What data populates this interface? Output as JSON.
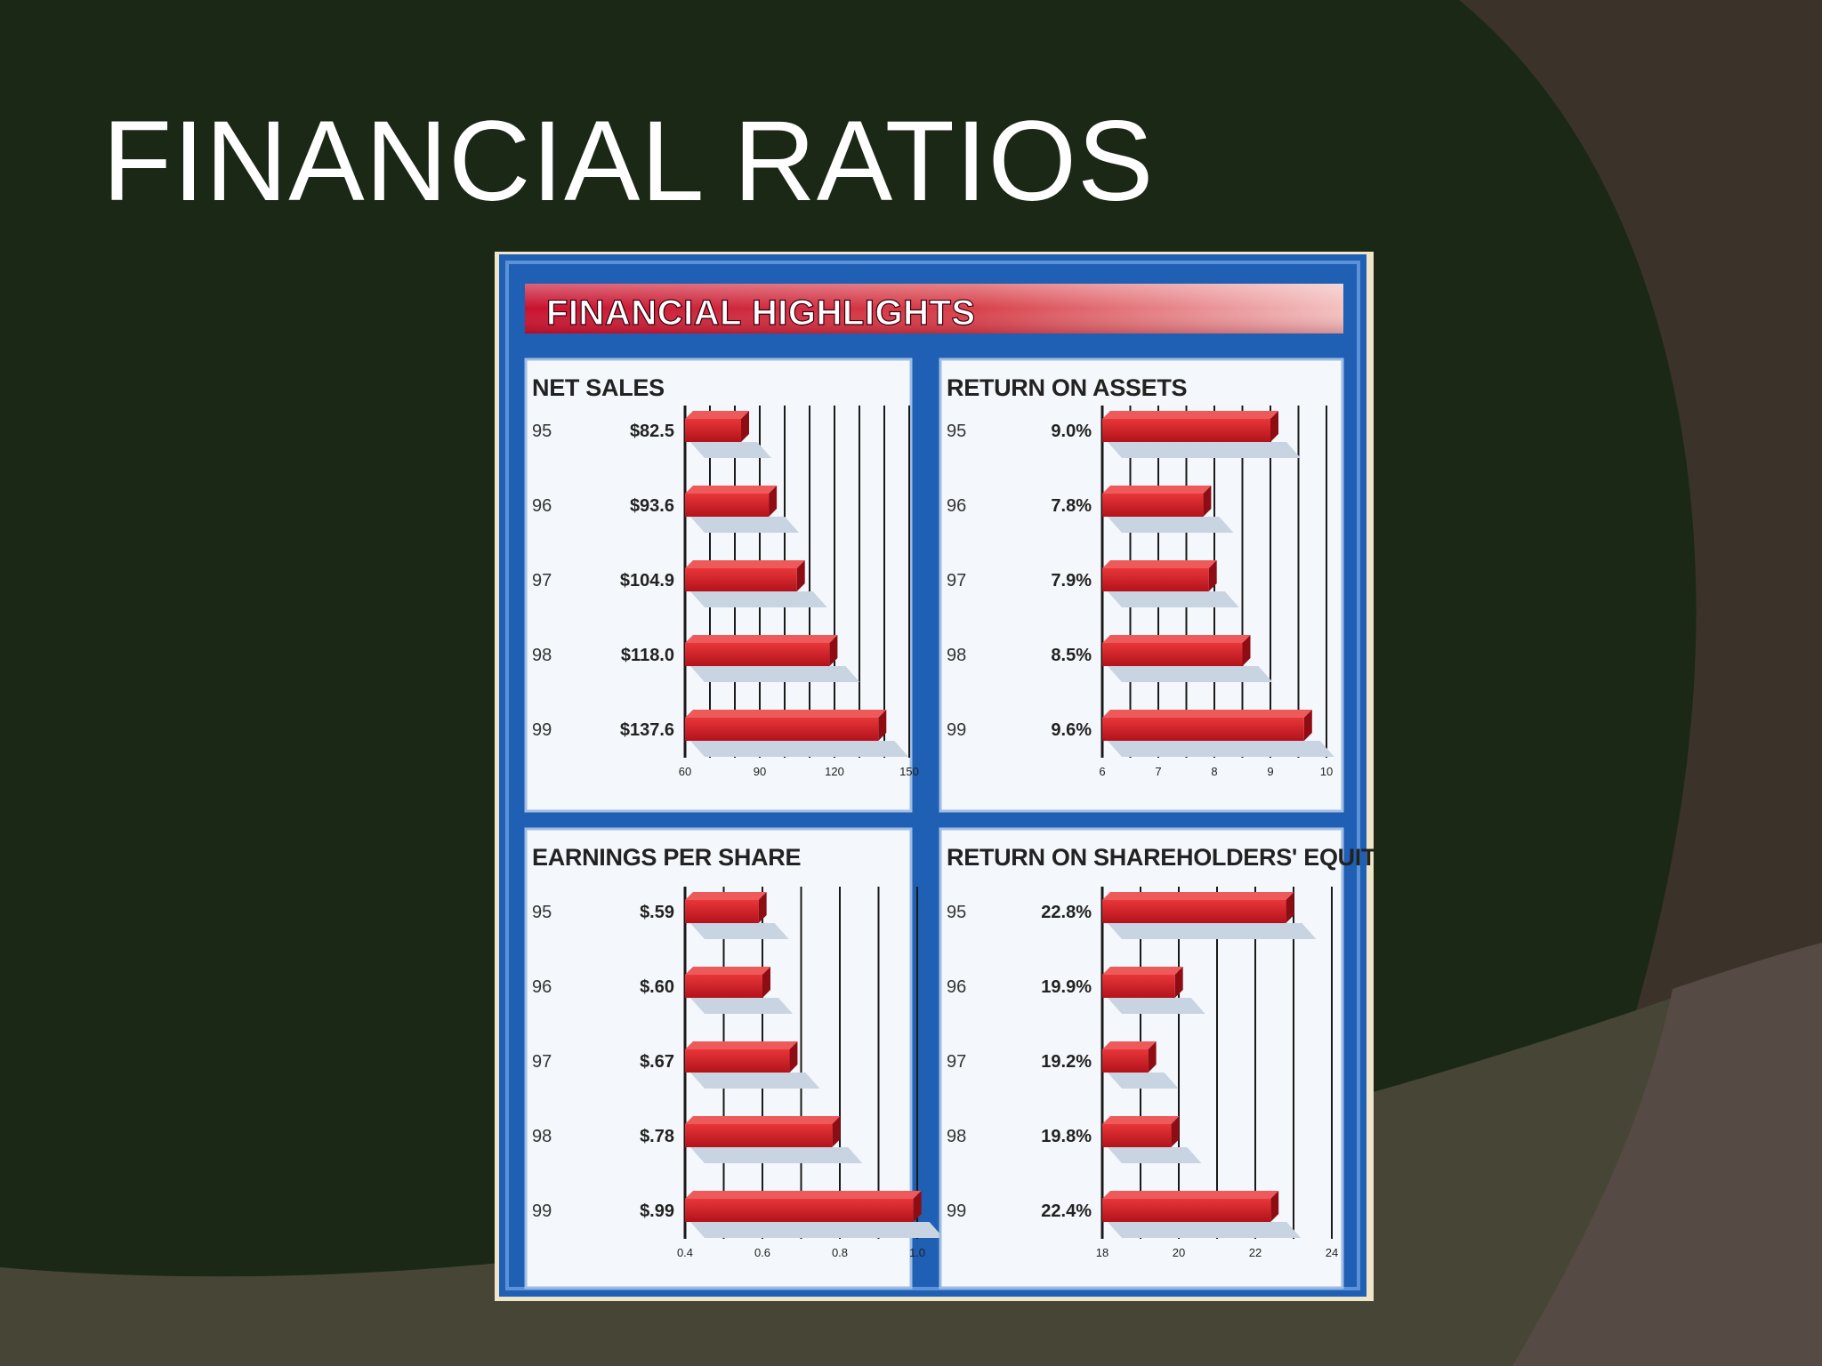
{
  "slide": {
    "title": "FINANCIAL RATIOS"
  },
  "figure": {
    "title": "FINANCIAL HIGHLIGHTS"
  },
  "colors": {
    "slide_background": "#1b2816",
    "frame_blue": "#1f5fb4",
    "banner_red": "#c8102e",
    "bar_red": "#d11a22",
    "bar_shadow": "#c9d4e2",
    "panel_background": "#f4f7fb"
  },
  "chart_data": [
    {
      "type": "bar",
      "orientation": "horizontal",
      "title": "NET SALES",
      "categories": [
        "95",
        "96",
        "97",
        "98",
        "99"
      ],
      "values": [
        82.5,
        93.6,
        104.9,
        118.0,
        137.6
      ],
      "value_labels": [
        "$82.5",
        "$93.6",
        "$104.9",
        "$118.0",
        "$137.6"
      ],
      "xlim": [
        60,
        150
      ],
      "xticks": [
        60,
        70,
        80,
        90,
        100,
        110,
        120,
        130,
        140,
        150
      ],
      "xtick_labels": [
        "60",
        "",
        "",
        "90",
        "",
        "",
        "120",
        "",
        "",
        "150"
      ],
      "grid": true
    },
    {
      "type": "bar",
      "orientation": "horizontal",
      "title": "RETURN ON ASSETS",
      "categories": [
        "95",
        "96",
        "97",
        "98",
        "99"
      ],
      "values": [
        9.0,
        7.8,
        7.9,
        8.5,
        9.6
      ],
      "value_labels": [
        "9.0%",
        "7.8%",
        "7.9%",
        "8.5%",
        "9.6%"
      ],
      "xlim": [
        6,
        10
      ],
      "xticks": [
        6,
        6.5,
        7,
        7.5,
        8,
        8.5,
        9,
        9.5,
        10
      ],
      "xtick_labels": [
        "6",
        "",
        "7",
        "",
        "8",
        "",
        "9",
        "",
        "10"
      ],
      "grid": true
    },
    {
      "type": "bar",
      "orientation": "horizontal",
      "title": "EARNINGS PER SHARE",
      "categories": [
        "95",
        "96",
        "97",
        "98",
        "99"
      ],
      "values": [
        0.59,
        0.6,
        0.67,
        0.78,
        0.99
      ],
      "value_labels": [
        "$.59",
        "$.60",
        "$.67",
        "$.78",
        "$.99"
      ],
      "xlim": [
        0.4,
        1.0
      ],
      "xticks": [
        0.4,
        0.5,
        0.6,
        0.7,
        0.8,
        0.9,
        1.0
      ],
      "xtick_labels": [
        "0.4",
        "",
        "0.6",
        "",
        "0.8",
        "",
        "1.0"
      ],
      "grid": true
    },
    {
      "type": "bar",
      "orientation": "horizontal",
      "title": "RETURN ON SHAREHOLDERS' EQUITY",
      "categories": [
        "95",
        "96",
        "97",
        "98",
        "99"
      ],
      "values": [
        22.8,
        19.9,
        19.2,
        19.8,
        22.4
      ],
      "value_labels": [
        "22.8%",
        "19.9%",
        "19.2%",
        "19.8%",
        "22.4%"
      ],
      "xlim": [
        18,
        24
      ],
      "xticks": [
        18,
        19,
        20,
        21,
        22,
        23,
        24
      ],
      "xtick_labels": [
        "18",
        "",
        "20",
        "",
        "22",
        "",
        "24"
      ],
      "grid": true
    }
  ]
}
